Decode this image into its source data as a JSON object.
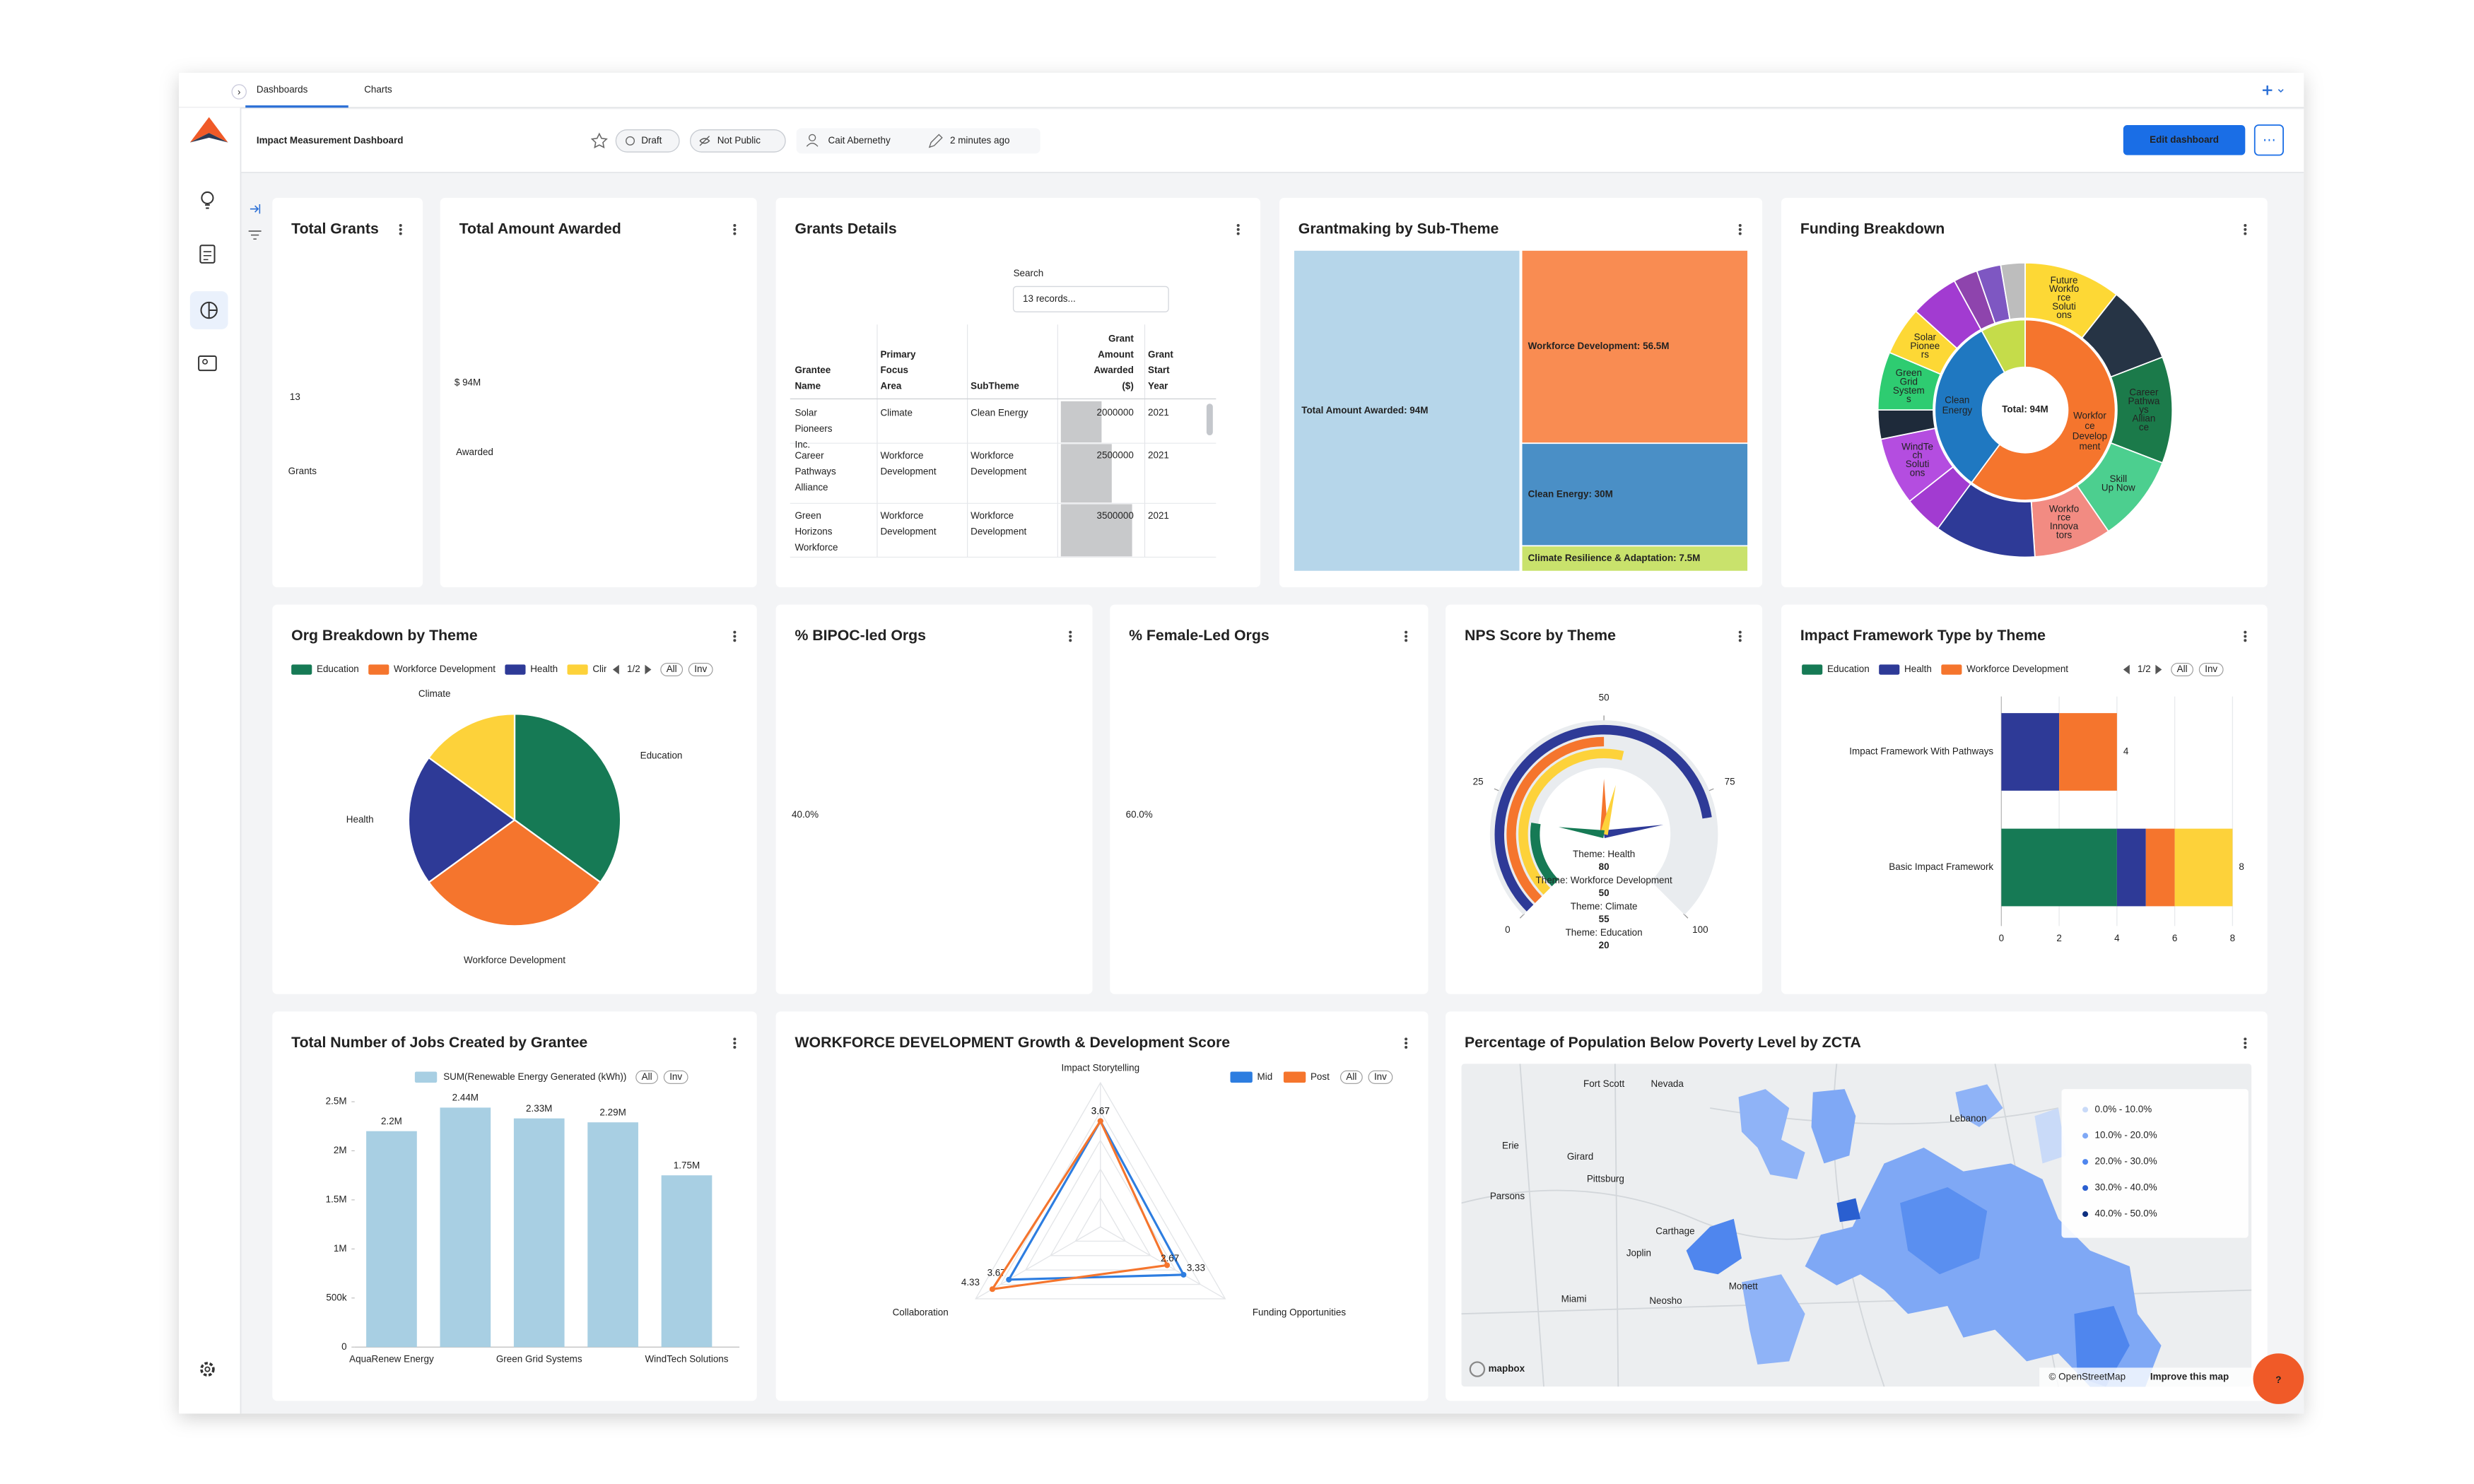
{
  "tabs": [
    "Dashboards",
    "Charts"
  ],
  "header": {
    "title": "Impact Measurement Dashboard",
    "status": "Draft",
    "visibility": "Not Public",
    "owner": "Cait Abernethy",
    "modified": "2 minutes ago",
    "edit_button": "Edit dashboard"
  },
  "kpis": [
    {
      "title": "Total Grants",
      "value": "13",
      "label": "Grants"
    },
    {
      "title": "Total Amount Awarded",
      "value": "$ 94M",
      "label": "Awarded"
    },
    {
      "title": "% BIPOC-led Orgs",
      "value": "40.0%"
    },
    {
      "title": "% Female-Led Orgs",
      "value": "60.0%"
    }
  ],
  "table": {
    "title": "Grants Details",
    "search_label": "Search",
    "search_placeholder": "13 records...",
    "columns": [
      "Grantee Name",
      "Primary Focus Area",
      "SubTheme",
      "Grant Amount Awarded ($)",
      "Grant Start Year"
    ],
    "rows": [
      [
        "Solar Pioneers Inc.",
        "Climate",
        "Clean Energy",
        2000000,
        2021
      ],
      [
        "Career Pathways Alliance",
        "Workforce Development",
        "Workforce Development",
        2500000,
        2021
      ],
      [
        "Green Horizons Workforce",
        "Workforce Development",
        "Workforce Development",
        3500000,
        2021
      ]
    ]
  },
  "chart_data": [
    {
      "type": "treemap",
      "title": "Grantmaking by Sub-Theme",
      "root": {
        "value": 94,
        "label": "Total Amount Awarded: 94M",
        "color": "#b6d6ea"
      },
      "values": [
        56.5,
        30,
        7.5
      ],
      "value_labels": [
        "Workforce Development: 56.5M",
        "Clean Energy: 30M",
        "Climate Resilience & Adaptation: 7.5M"
      ],
      "colors": [
        "#f98c52",
        "#4a8fc6",
        "#c9e26c"
      ]
    },
    {
      "type": "sunburst",
      "title": "Funding Breakdown",
      "center_label": "Total: 94M",
      "categories": [
        "Workforce Development",
        "Clean Energy",
        null
      ],
      "values": [
        56.5,
        30,
        7.5
      ],
      "colors": [
        "#f5752d",
        "#1f78c1",
        "#c5dc4a"
      ],
      "children": [
        {
          "labels": [
            "Future Workforce Solutions",
            null,
            "Career Pathways Alliance",
            "Skill Up Now",
            "Workforce Innovators",
            null
          ],
          "values": [
            10,
            8,
            11,
            9,
            8,
            10.5
          ],
          "colors": [
            "#fdd835",
            "#263445",
            "#1b7a4a",
            "#4ccf8f",
            "#f28b82",
            "#2e3a97"
          ]
        },
        {
          "labels": [
            null,
            "WindTech Solutions",
            null,
            "Green Grid Systems",
            "Solar Pioneers",
            null
          ],
          "values": [
            4,
            7,
            3,
            6,
            5,
            5
          ],
          "colors": [
            "#a23bd1",
            "#b44de0",
            "#1e2a3a",
            "#2ecc71",
            "#fdd835",
            "#a23bd1"
          ]
        },
        {
          "labels": [
            null,
            null,
            null
          ],
          "values": [
            2.5,
            2.5,
            2.5
          ],
          "colors": [
            "#8e44ad",
            "#7e57c2",
            "#bdbdbd"
          ]
        }
      ]
    },
    {
      "type": "pie",
      "title": "Org Breakdown by Theme",
      "categories": [
        "Education",
        "Workforce Development",
        "Health",
        "Climate"
      ],
      "values": [
        35,
        30,
        20,
        15
      ],
      "colors": [
        "#167a55",
        "#f5752d",
        "#2e3a97",
        "#fdd23a"
      ],
      "legend_pager": "1/2",
      "legend_buttons": [
        "All",
        "Inv"
      ]
    },
    {
      "type": "gauge",
      "title": "NPS Score by Theme",
      "ylim": [
        0,
        100
      ],
      "yticks": [
        0,
        25,
        50,
        75,
        100
      ],
      "series": [
        {
          "name": "Theme: Health",
          "color": "#2e3a97",
          "value": 80
        },
        {
          "name": "Theme: Workforce Development",
          "color": "#f5752d",
          "value": 50
        },
        {
          "name": "Theme: Climate",
          "color": "#fdd23a",
          "value": 55
        },
        {
          "name": "Theme: Education",
          "color": "#167a55",
          "value": 20
        }
      ]
    },
    {
      "type": "hbar_stacked",
      "title": "Impact Framework Type by Theme",
      "categories": [
        "Impact Framework With Pathways",
        "Basic Impact Framework"
      ],
      "series": [
        {
          "name": "Education",
          "color": "#167a55",
          "values": [
            0,
            4
          ]
        },
        {
          "name": "Health",
          "color": "#2e3a97",
          "values": [
            2,
            1
          ]
        },
        {
          "name": "Workforce Development",
          "color": "#f5752d",
          "values": [
            2,
            1
          ]
        },
        {
          "name": null,
          "color": "#fdd23a",
          "values": [
            0,
            2
          ]
        }
      ],
      "totals": [
        4,
        8
      ],
      "xlim": [
        0,
        8
      ],
      "xticks": [
        0,
        2,
        4,
        6,
        8
      ],
      "grid": true,
      "legend_pager": "1/2",
      "legend_buttons": [
        "All",
        "Inv"
      ]
    },
    {
      "type": "bar",
      "title": "Total Number of Jobs Created by Grantee",
      "series_name": "SUM(Renewable Energy Generated (kWh))",
      "color": "#a8cfe3",
      "categories": [
        "AquaRenew Energy",
        null,
        "Green Grid Systems",
        null,
        "WindTech Solutions"
      ],
      "values": [
        2200000,
        2440000,
        2330000,
        2290000,
        1750000
      ],
      "value_labels": [
        "2.2M",
        "2.44M",
        "2.33M",
        "2.29M",
        "1.75M"
      ],
      "ylim": [
        0,
        2500000
      ],
      "yticks": [
        0,
        {
          "value": 500000,
          "label": "500k"
        },
        {
          "value": 1000000,
          "label": "1M"
        },
        {
          "value": 1500000,
          "label": "1.5M"
        },
        {
          "value": 2000000,
          "label": "2M"
        },
        {
          "value": 2500000,
          "label": "2.5M"
        }
      ],
      "grid": false,
      "legend_buttons": [
        "All",
        "Inv"
      ]
    },
    {
      "type": "radar",
      "title": "WORKFORCE DEVELOPMENT Growth & Development Score",
      "axes": [
        "Impact Storytelling",
        "Funding Opportunities",
        "Collaboration"
      ],
      "rlim": [
        0,
        5
      ],
      "series": [
        {
          "name": "Mid",
          "color": "#2d7de0",
          "values": [
            3.67,
            3.33,
            3.67
          ]
        },
        {
          "name": "Post",
          "color": "#f5752d",
          "values": [
            3.67,
            2.67,
            4.33
          ]
        }
      ],
      "legend_buttons": [
        "All",
        "Inv"
      ]
    }
  ],
  "map": {
    "title": "Percentage of Population Below Poverty Level by ZCTA",
    "legend": [
      {
        "label": "0.0% - 10.0%",
        "color": "#c9daf8"
      },
      {
        "label": "10.0% - 20.0%",
        "color": "#7fa8f5"
      },
      {
        "label": "20.0% - 30.0%",
        "color": "#4f86ee"
      },
      {
        "label": "30.0% - 40.0%",
        "color": "#2a5fd0"
      },
      {
        "label": "40.0% - 50.0%",
        "color": "#0d2f80"
      }
    ],
    "places": [
      "Fort Scott",
      "Nevada",
      "Lebanon",
      "Erie",
      "Girard",
      "Pittsburg",
      "Parsons",
      "Carthage",
      "Joplin",
      "Neosho",
      "Monett",
      "Miami"
    ],
    "attribution": [
      "mapbox",
      "© OpenStreetMap",
      "Improve this map"
    ]
  },
  "help": "?"
}
